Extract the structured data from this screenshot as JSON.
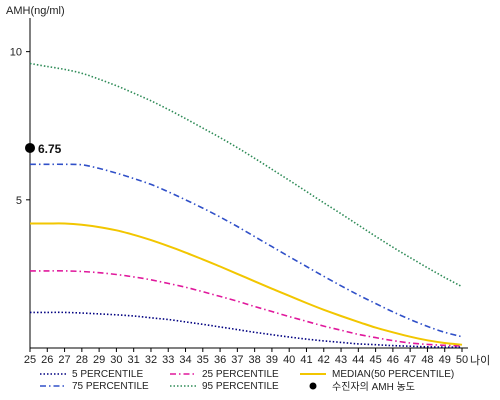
{
  "chart_data": {
    "type": "line",
    "ylabel": "AMH(ng/ml)",
    "xlabel": "나이",
    "x": [
      25,
      26,
      27,
      28,
      29,
      30,
      31,
      32,
      33,
      34,
      35,
      36,
      37,
      38,
      39,
      40,
      41,
      42,
      43,
      44,
      45,
      46,
      47,
      48,
      49,
      50
    ],
    "xlim": [
      25,
      50
    ],
    "ylim": [
      0,
      11
    ],
    "yticks": [
      5,
      10
    ],
    "grid": false,
    "legend_placement": "bottom",
    "series": [
      {
        "name": "5 PERCENTILE",
        "color": "#000080",
        "dash": "dotted",
        "values": [
          1.2,
          1.2,
          1.2,
          1.18,
          1.15,
          1.12,
          1.08,
          1.02,
          0.96,
          0.88,
          0.8,
          0.71,
          0.62,
          0.53,
          0.45,
          0.37,
          0.3,
          0.24,
          0.19,
          0.14,
          0.11,
          0.08,
          0.06,
          0.04,
          0.03,
          0.03
        ]
      },
      {
        "name": "75 PERCENTILE",
        "color": "#3050c8",
        "dash": "dashdot",
        "values": [
          6.2,
          6.2,
          6.2,
          6.18,
          6.06,
          5.9,
          5.72,
          5.52,
          5.27,
          5.0,
          4.72,
          4.42,
          4.1,
          3.76,
          3.42,
          3.08,
          2.75,
          2.42,
          2.1,
          1.79,
          1.5,
          1.22,
          0.96,
          0.73,
          0.53,
          0.38
        ]
      },
      {
        "name": "25 PERCENTILE",
        "color": "#e0189c",
        "dash": "dashdot",
        "values": [
          2.6,
          2.6,
          2.6,
          2.58,
          2.54,
          2.48,
          2.4,
          2.3,
          2.18,
          2.05,
          1.9,
          1.74,
          1.58,
          1.4,
          1.23,
          1.06,
          0.9,
          0.74,
          0.6,
          0.46,
          0.35,
          0.25,
          0.17,
          0.12,
          0.09,
          0.07
        ]
      },
      {
        "name": "95 PERCENTILE",
        "color": "#2e8b57",
        "dash": "dotted",
        "values": [
          9.6,
          9.5,
          9.4,
          9.27,
          9.07,
          8.85,
          8.6,
          8.34,
          8.05,
          7.74,
          7.42,
          7.1,
          6.76,
          6.4,
          6.03,
          5.66,
          5.28,
          4.9,
          4.53,
          4.15,
          3.77,
          3.4,
          3.05,
          2.71,
          2.38,
          2.07
        ]
      },
      {
        "name": "MEDIAN(50 PERCENTILE)",
        "color": "#f2c600",
        "dash": "solid",
        "values": [
          4.2,
          4.2,
          4.2,
          4.16,
          4.08,
          3.97,
          3.82,
          3.64,
          3.44,
          3.22,
          2.99,
          2.75,
          2.5,
          2.25,
          2.0,
          1.76,
          1.52,
          1.29,
          1.08,
          0.88,
          0.69,
          0.53,
          0.38,
          0.26,
          0.17,
          0.11
        ]
      }
    ],
    "marker": {
      "name": "수진자의 AMH 농도",
      "x": 25,
      "y": 6.75,
      "label": "6.75",
      "color": "#000000"
    }
  }
}
